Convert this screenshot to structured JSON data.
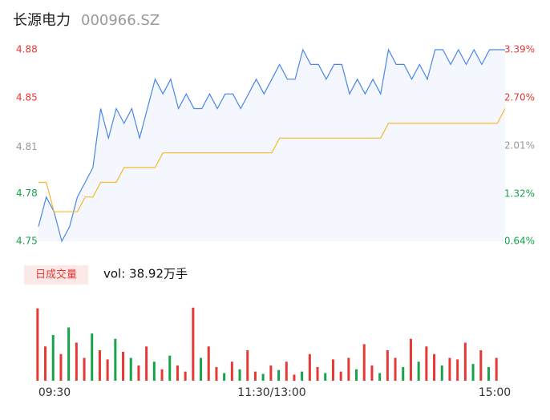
{
  "header": {
    "name": "长源电力",
    "code": "000966.SZ"
  },
  "chart_data": [
    {
      "type": "line",
      "x": [
        0,
        4,
        8,
        12,
        16,
        20,
        24,
        28,
        32,
        36,
        40,
        44,
        48,
        52,
        56,
        60,
        64,
        68,
        72,
        76,
        80,
        84,
        88,
        92,
        96,
        100,
        104,
        108,
        112,
        116,
        120,
        124,
        128,
        132,
        136,
        140,
        144,
        148,
        152,
        156,
        160,
        164,
        168,
        172,
        176,
        180,
        184,
        188,
        192,
        196,
        200,
        204,
        208,
        212,
        216,
        220,
        224,
        228,
        232,
        236,
        240
      ],
      "xlim": [
        0,
        240
      ],
      "xticks": [
        {
          "value": 0,
          "label": "09:30"
        },
        {
          "value": 120,
          "label": "11:30/13:00"
        },
        {
          "value": 240,
          "label": "15:00"
        }
      ],
      "ylim": [
        4.75,
        4.88
      ],
      "yticks": [
        4.75,
        {
          "value": 4.7825,
          "label": "4.78"
        },
        {
          "value": 4.814,
          "label": "4.81"
        },
        {
          "value": 4.8475,
          "label": "4.85"
        },
        4.88
      ],
      "y2lim": [
        0.64,
        3.39
      ],
      "y2ticks": [
        {
          "value": 0.64,
          "label": "0.64%"
        },
        {
          "value": 1.32,
          "label": "1.32%"
        },
        {
          "value": 2.01,
          "label": "2.01%"
        },
        {
          "value": 2.7,
          "label": "2.70%"
        },
        {
          "value": 3.39,
          "label": "3.39%"
        }
      ],
      "tick_colors": [
        "#16a34a",
        "#16a34a",
        "#999999",
        "#e53935",
        "#e53935"
      ],
      "series": [
        {
          "name": "price",
          "color": "#4a86e8",
          "values": [
            4.76,
            4.78,
            4.77,
            4.75,
            4.76,
            4.78,
            4.79,
            4.8,
            4.84,
            4.82,
            4.84,
            4.83,
            4.84,
            4.82,
            4.84,
            4.86,
            4.85,
            4.86,
            4.84,
            4.85,
            4.84,
            4.84,
            4.85,
            4.84,
            4.85,
            4.85,
            4.84,
            4.85,
            4.86,
            4.85,
            4.86,
            4.87,
            4.86,
            4.86,
            4.88,
            4.87,
            4.87,
            4.86,
            4.87,
            4.87,
            4.85,
            4.86,
            4.85,
            4.86,
            4.85,
            4.88,
            4.87,
            4.87,
            4.86,
            4.87,
            4.86,
            4.88,
            4.88,
            4.87,
            4.88,
            4.87,
            4.88,
            4.87,
            4.88,
            4.88,
            4.88
          ]
        },
        {
          "name": "average",
          "color": "#f5b82e",
          "values": [
            4.79,
            4.79,
            4.77,
            4.77,
            4.77,
            4.77,
            4.78,
            4.78,
            4.79,
            4.79,
            4.79,
            4.8,
            4.8,
            4.8,
            4.8,
            4.8,
            4.81,
            4.81,
            4.81,
            4.81,
            4.81,
            4.81,
            4.81,
            4.81,
            4.81,
            4.81,
            4.81,
            4.81,
            4.81,
            4.81,
            4.81,
            4.82,
            4.82,
            4.82,
            4.82,
            4.82,
            4.82,
            4.82,
            4.82,
            4.82,
            4.82,
            4.82,
            4.82,
            4.82,
            4.82,
            4.83,
            4.83,
            4.83,
            4.83,
            4.83,
            4.83,
            4.83,
            4.83,
            4.83,
            4.83,
            4.83,
            4.83,
            4.83,
            4.83,
            4.83,
            4.84
          ]
        }
      ]
    },
    {
      "type": "bar",
      "legend": "日成交量",
      "label": "vol: 38.92万手",
      "ylim": [
        0,
        100
      ],
      "values": [
        95,
        45,
        60,
        35,
        70,
        50,
        30,
        62,
        40,
        28,
        55,
        38,
        30,
        20,
        45,
        25,
        15,
        33,
        20,
        12,
        96,
        30,
        45,
        18,
        10,
        25,
        15,
        40,
        12,
        9,
        20,
        14,
        25,
        8,
        12,
        35,
        18,
        10,
        28,
        12,
        30,
        15,
        48,
        20,
        10,
        40,
        30,
        18,
        55,
        25,
        45,
        35,
        20,
        30,
        28,
        50,
        22,
        40,
        18,
        30
      ],
      "colors": [
        "#e53935",
        "#e53935",
        "#16a34a",
        "#e53935",
        "#16a34a",
        "#e53935",
        "#e53935",
        "#16a34a",
        "#e53935",
        "#e53935",
        "#16a34a",
        "#e53935",
        "#16a34a",
        "#e53935",
        "#e53935",
        "#16a34a",
        "#e53935",
        "#16a34a",
        "#e53935",
        "#e53935",
        "#e53935",
        "#16a34a",
        "#e53935",
        "#e53935",
        "#16a34a",
        "#e53935",
        "#16a34a",
        "#e53935",
        "#e53935",
        "#16a34a",
        "#e53935",
        "#16a34a",
        "#e53935",
        "#e53935",
        "#16a34a",
        "#e53935",
        "#e53935",
        "#16a34a",
        "#e53935",
        "#e53935",
        "#e53935",
        "#16a34a",
        "#e53935",
        "#e53935",
        "#16a34a",
        "#e53935",
        "#e53935",
        "#16a34a",
        "#e53935",
        "#16a34a",
        "#e53935",
        "#e53935",
        "#16a34a",
        "#e53935",
        "#e53935",
        "#e53935",
        "#16a34a",
        "#e53935",
        "#16a34a",
        "#e53935"
      ]
    }
  ]
}
